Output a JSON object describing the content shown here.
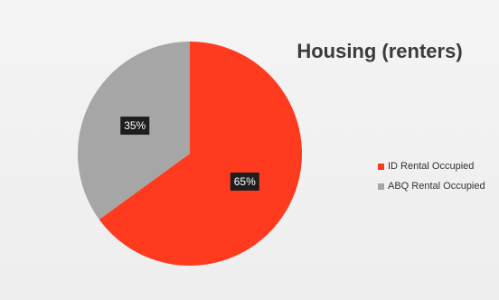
{
  "chart_data": {
    "type": "pie",
    "title": "Housing (renters)",
    "categories": [
      "ID Rental Occupied",
      "ABQ Rental Occupied"
    ],
    "values": [
      65,
      35
    ],
    "labels": [
      "65%",
      "35%"
    ],
    "colors": [
      "#ff3b1f",
      "#a6a6a6"
    ],
    "legend_position": "right"
  }
}
